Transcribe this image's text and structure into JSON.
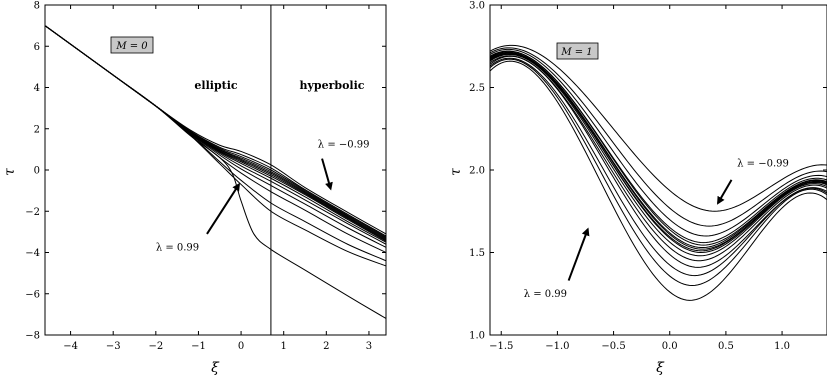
{
  "chart_data": [
    {
      "type": "line",
      "title": "",
      "xlabel": "ξ",
      "ylabel": "τ",
      "xlim": [
        -4.6,
        3.4
      ],
      "ylim": [
        -8,
        8
      ],
      "xticks": [
        -4,
        -3,
        -2,
        -1,
        0,
        1,
        2,
        3
      ],
      "yticks": [
        -8,
        -6,
        -4,
        -2,
        0,
        2,
        4,
        6,
        8
      ],
      "box_label": "M = 0",
      "region_labels": [
        "elliptic",
        "hyperbolic"
      ],
      "boundary_x": 0.7,
      "annotations": [
        {
          "text": "λ = −0.99",
          "tx": 1.8,
          "ty": 1.1,
          "arrow_from": [
            1.9,
            0.55
          ],
          "arrow_to": [
            2.1,
            -0.9
          ]
        },
        {
          "text": "λ = 0.99",
          "tx": -2.0,
          "ty": -3.9,
          "arrow_from": [
            -0.8,
            -3.1
          ],
          "arrow_to": [
            -0.05,
            -0.7
          ]
        }
      ],
      "series": [
        {
          "x": [
            -4.6,
            -3,
            -2,
            -1.2,
            -0.5,
            0,
            0.7,
            1.5,
            2.5,
            3.4
          ],
          "y": [
            7.0,
            4.6,
            3.1,
            1.95,
            1.2,
            0.9,
            0.25,
            -0.85,
            -2.05,
            -3.1
          ]
        },
        {
          "x": [
            -4.6,
            -3,
            -2,
            -1.2,
            -0.5,
            0,
            0.7,
            1.5,
            2.5,
            3.4
          ],
          "y": [
            7.0,
            4.6,
            3.1,
            1.9,
            1.1,
            0.75,
            0.1,
            -0.95,
            -2.15,
            -3.2
          ]
        },
        {
          "x": [
            -4.6,
            -3,
            -2,
            -1.2,
            -0.5,
            0,
            0.7,
            1.5,
            2.5,
            3.4
          ],
          "y": [
            7.0,
            4.6,
            3.1,
            1.88,
            1.05,
            0.65,
            0.0,
            -1.0,
            -2.2,
            -3.25
          ]
        },
        {
          "x": [
            -4.6,
            -3,
            -2,
            -1.2,
            -0.5,
            0,
            0.7,
            1.5,
            2.5,
            3.4
          ],
          "y": [
            7.0,
            4.6,
            3.1,
            1.86,
            1.0,
            0.58,
            -0.08,
            -1.05,
            -2.25,
            -3.3
          ]
        },
        {
          "x": [
            -4.6,
            -3,
            -2,
            -1.2,
            -0.5,
            0,
            0.7,
            1.5,
            2.5,
            3.4
          ],
          "y": [
            7.0,
            4.6,
            3.1,
            1.85,
            0.97,
            0.52,
            -0.15,
            -1.1,
            -2.3,
            -3.35
          ]
        },
        {
          "x": [
            -4.6,
            -3,
            -2,
            -1.2,
            -0.5,
            0,
            0.7,
            1.5,
            2.5,
            3.4
          ],
          "y": [
            7.0,
            4.6,
            3.1,
            1.84,
            0.93,
            0.46,
            -0.22,
            -1.15,
            -2.35,
            -3.4
          ]
        },
        {
          "x": [
            -4.6,
            -3,
            -2,
            -1.2,
            -0.5,
            0,
            0.7,
            1.5,
            2.5,
            3.4
          ],
          "y": [
            7.0,
            4.6,
            3.1,
            1.83,
            0.9,
            0.4,
            -0.3,
            -1.2,
            -2.4,
            -3.45
          ]
        },
        {
          "x": [
            -4.6,
            -3,
            -2,
            -1.2,
            -0.5,
            0,
            0.7,
            1.5,
            2.5,
            3.4
          ],
          "y": [
            7.0,
            4.6,
            3.1,
            1.82,
            0.86,
            0.32,
            -0.4,
            -1.3,
            -2.5,
            -3.5
          ]
        },
        {
          "x": [
            -4.6,
            -3,
            -2,
            -1.2,
            -0.5,
            0,
            0.7,
            1.5,
            2.5,
            3.4
          ],
          "y": [
            7.0,
            4.6,
            3.1,
            1.8,
            0.8,
            0.2,
            -0.55,
            -1.45,
            -2.6,
            -3.6
          ]
        },
        {
          "x": [
            -4.6,
            -3,
            -2,
            -1.2,
            -0.5,
            0,
            0.7,
            1.5,
            2.5,
            3.4
          ],
          "y": [
            7.0,
            4.6,
            3.1,
            1.78,
            0.72,
            0.05,
            -0.75,
            -1.65,
            -2.8,
            -3.75
          ]
        },
        {
          "x": [
            -4.6,
            -3,
            -2,
            -1.2,
            -0.5,
            0,
            0.7,
            1.5,
            2.5,
            3.4
          ],
          "y": [
            7.0,
            4.6,
            3.1,
            1.76,
            0.6,
            -0.15,
            -1.05,
            -1.95,
            -3.1,
            -4.0
          ]
        },
        {
          "x": [
            -4.6,
            -3,
            -2,
            -1.2,
            -0.5,
            0,
            0.7,
            1.5,
            2.5,
            3.4
          ],
          "y": [
            7.0,
            4.6,
            3.1,
            1.72,
            0.4,
            -0.5,
            -1.6,
            -2.5,
            -3.6,
            -4.4
          ]
        },
        {
          "x": [
            -4.6,
            -3,
            -2,
            -1.2,
            -0.5,
            0,
            0.7,
            1.5,
            2.5,
            3.4
          ],
          "y": [
            7.0,
            4.6,
            3.1,
            1.7,
            0.3,
            -0.7,
            -2.0,
            -2.9,
            -3.95,
            -4.65
          ]
        },
        {
          "x": [
            -4.6,
            -3,
            -2,
            -1.2,
            -0.5,
            -0.2,
            0,
            0.3,
            0.7,
            1.5,
            2.5,
            3.4
          ],
          "y": [
            7.0,
            4.6,
            3.1,
            1.68,
            0.6,
            -0.2,
            -1.5,
            -3.1,
            -3.85,
            -4.85,
            -6.1,
            -7.2
          ]
        }
      ]
    },
    {
      "type": "line",
      "title": "",
      "xlabel": "ξ",
      "ylabel": "τ",
      "xlim": [
        -1.6,
        1.4
      ],
      "ylim": [
        1.0,
        3.0
      ],
      "xticks": [
        -1.5,
        -1.0,
        -0.5,
        0.0,
        0.5,
        1.0
      ],
      "yticks": [
        1.0,
        1.5,
        2.0,
        2.5,
        3.0
      ],
      "tick_labels_x": [
        "−1.5",
        "−1.0",
        "−0.5",
        "0.0",
        "0.5",
        "1.0"
      ],
      "tick_labels_y": [
        "1.0",
        "1.5",
        "2.0",
        "2.5",
        "3.0"
      ],
      "box_label": "M = 1",
      "annotations": [
        {
          "text": "λ = −0.99",
          "tx": 0.6,
          "ty": 2.02,
          "arrow_from": [
            0.55,
            1.94
          ],
          "arrow_to": [
            0.43,
            1.8
          ]
        },
        {
          "text": "λ = 0.99",
          "tx": -1.3,
          "ty": 1.23,
          "arrow_from": [
            -0.9,
            1.33
          ],
          "arrow_to": [
            -0.73,
            1.64
          ]
        }
      ],
      "series": [
        {
          "x0": 0.4,
          "y0": 1.75,
          "a": 0.92,
          "yl": 2.72,
          "yr": 2.03
        },
        {
          "x0": 0.35,
          "y0": 1.66,
          "a": 1.02,
          "yl": 2.71,
          "yr": 1.99
        },
        {
          "x0": 0.32,
          "y0": 1.6,
          "a": 1.1,
          "yl": 2.7,
          "yr": 1.96
        },
        {
          "x0": 0.3,
          "y0": 1.56,
          "a": 1.15,
          "yl": 2.69,
          "yr": 1.94
        },
        {
          "x0": 0.3,
          "y0": 1.545,
          "a": 1.17,
          "yl": 2.685,
          "yr": 1.93
        },
        {
          "x0": 0.29,
          "y0": 1.53,
          "a": 1.19,
          "yl": 2.68,
          "yr": 1.925
        },
        {
          "x0": 0.29,
          "y0": 1.52,
          "a": 1.2,
          "yl": 2.675,
          "yr": 1.92
        },
        {
          "x0": 0.28,
          "y0": 1.51,
          "a": 1.22,
          "yl": 2.67,
          "yr": 1.915
        },
        {
          "x0": 0.28,
          "y0": 1.5,
          "a": 1.24,
          "yl": 2.665,
          "yr": 1.91
        },
        {
          "x0": 0.27,
          "y0": 1.48,
          "a": 1.27,
          "yl": 2.66,
          "yr": 1.9
        },
        {
          "x0": 0.26,
          "y0": 1.45,
          "a": 1.31,
          "yl": 2.65,
          "yr": 1.89
        },
        {
          "x0": 0.25,
          "y0": 1.41,
          "a": 1.38,
          "yl": 2.64,
          "yr": 1.87
        },
        {
          "x0": 0.22,
          "y0": 1.36,
          "a": 1.46,
          "yl": 2.63,
          "yr": 1.86
        },
        {
          "x0": 0.2,
          "y0": 1.3,
          "a": 1.56,
          "yl": 2.62,
          "yr": 1.85
        },
        {
          "x0": 0.18,
          "y0": 1.21,
          "a": 1.7,
          "yl": 2.6,
          "yr": 1.82
        }
      ]
    }
  ]
}
